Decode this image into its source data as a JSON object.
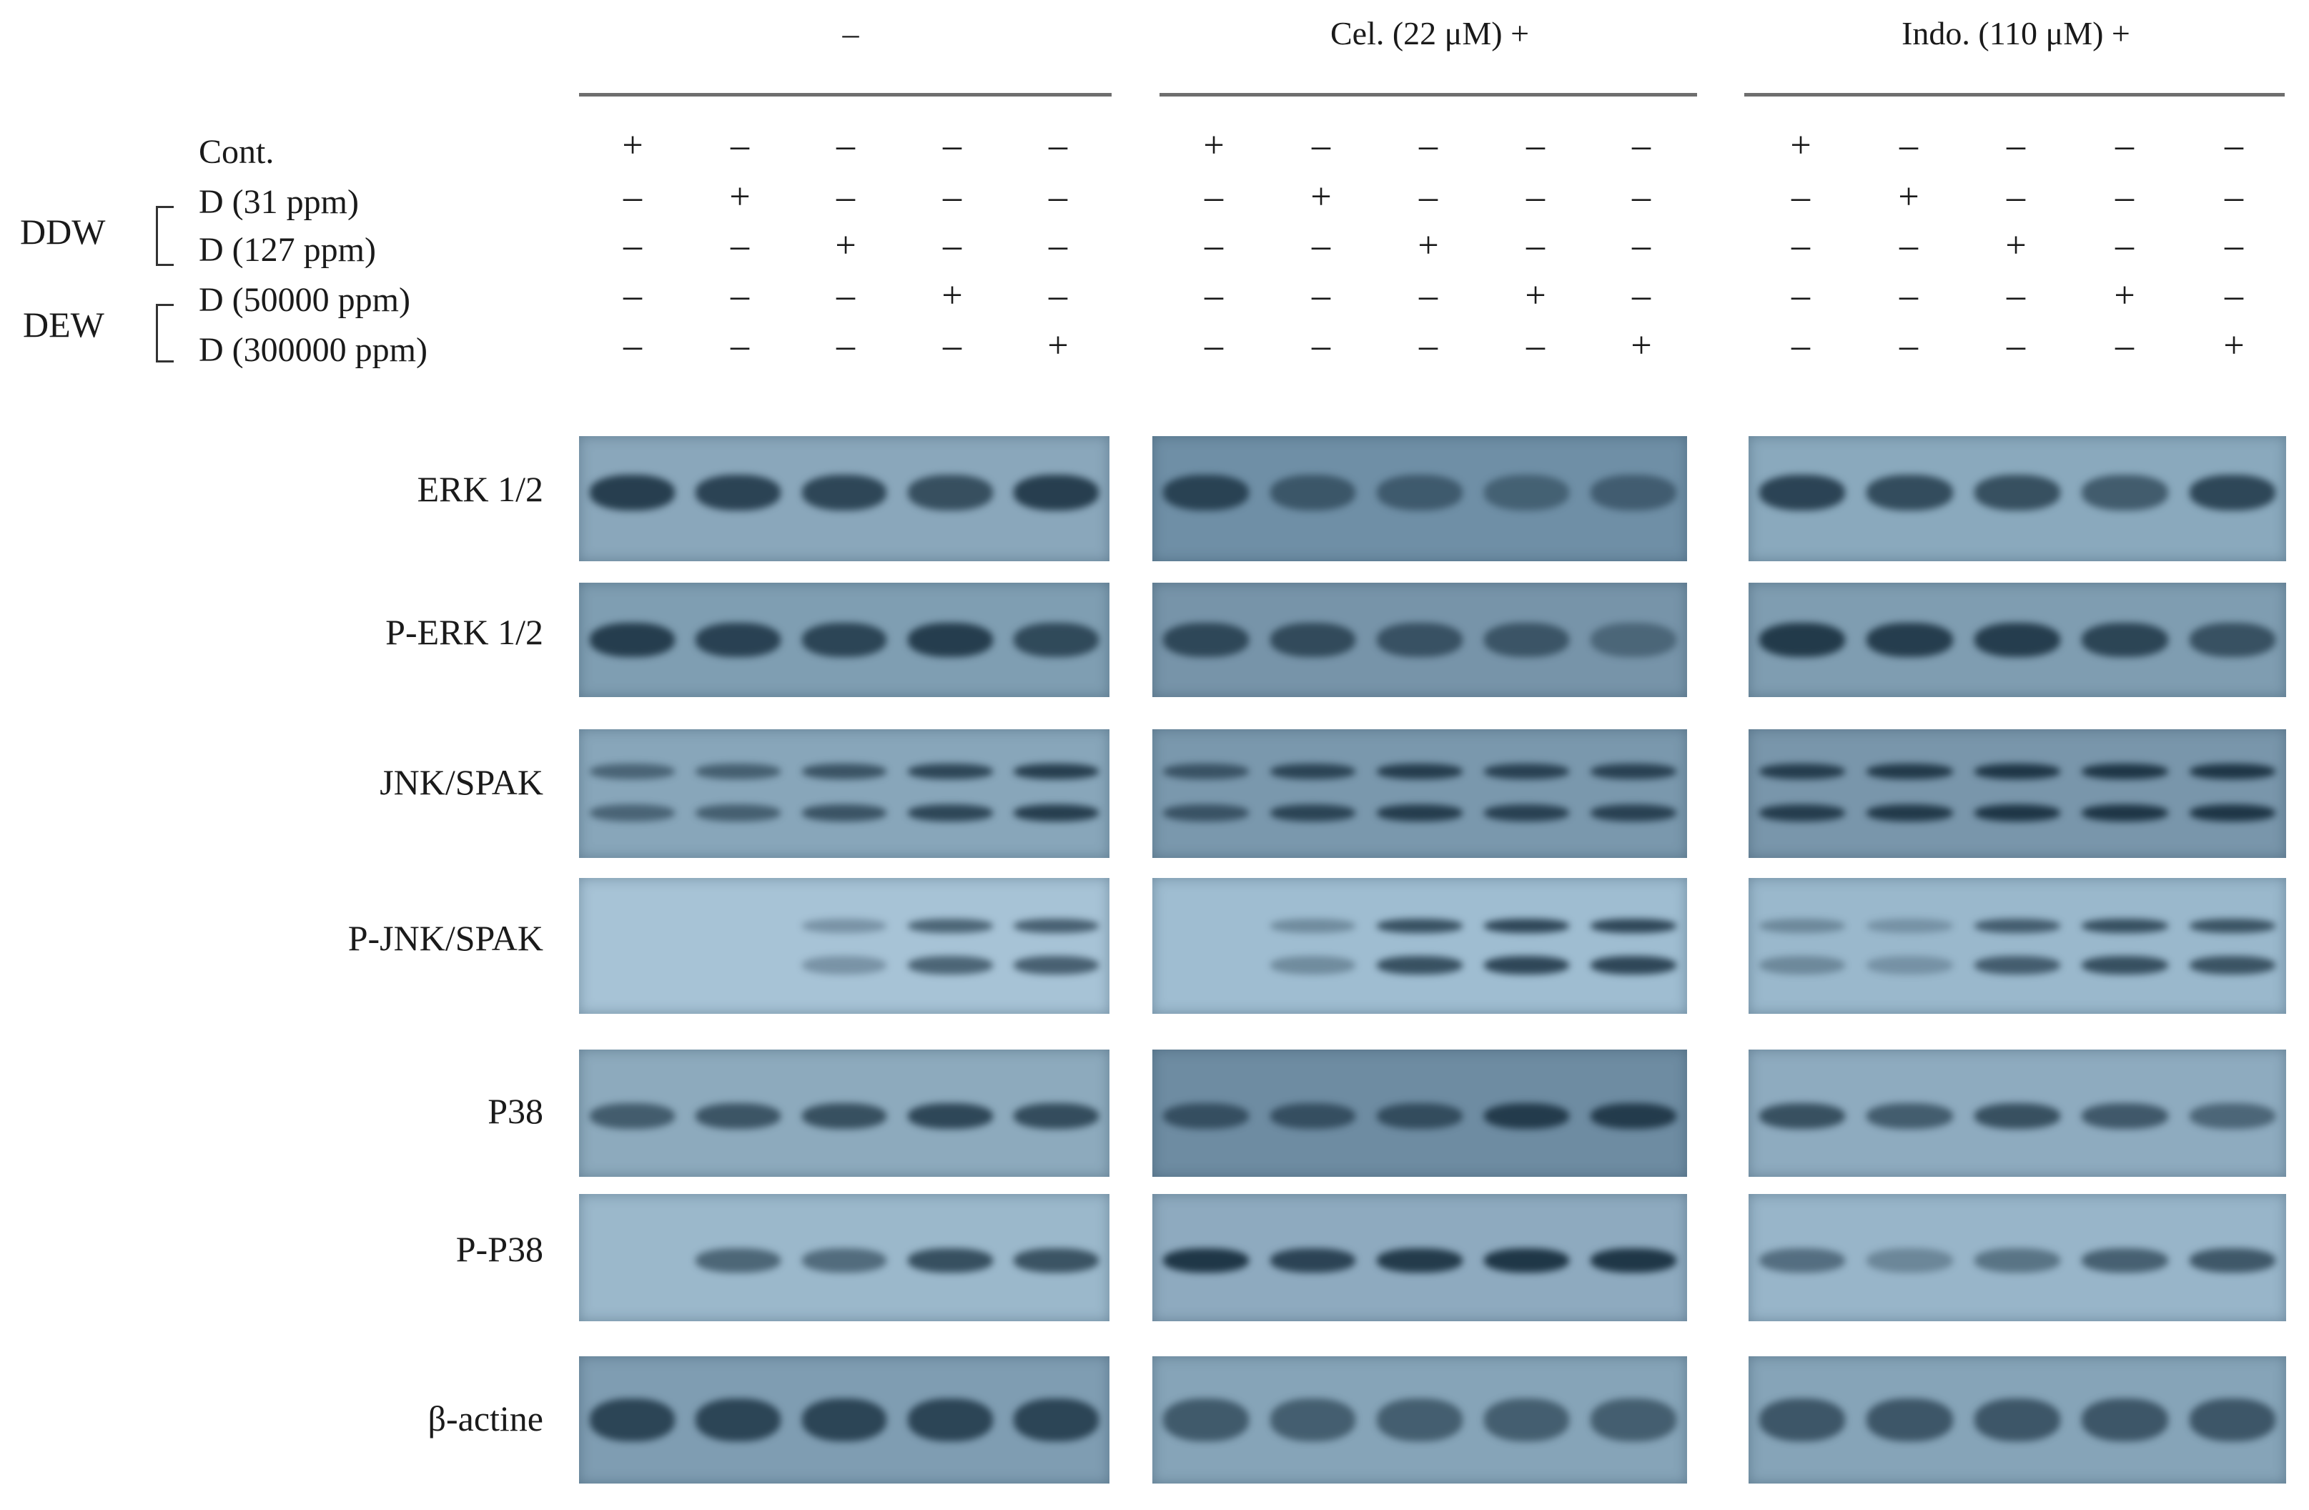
{
  "groups": [
    {
      "label": "–"
    },
    {
      "label": "Cel. (22 μM) +"
    },
    {
      "label": "Indo. (110 μM) +"
    }
  ],
  "condition_rows": [
    {
      "label": "Cont.",
      "signs": [
        "+",
        "–",
        "–",
        "–",
        "–"
      ]
    },
    {
      "label": "D (31 ppm)",
      "signs": [
        "–",
        "+",
        "–",
        "–",
        "–"
      ]
    },
    {
      "label": "D (127 ppm)",
      "signs": [
        "–",
        "–",
        "+",
        "–",
        "–"
      ]
    },
    {
      "label": "D (50000 ppm)",
      "signs": [
        "–",
        "–",
        "–",
        "+",
        "–"
      ]
    },
    {
      "label": "D (300000 ppm)",
      "signs": [
        "–",
        "–",
        "–",
        "–",
        "+"
      ]
    }
  ],
  "water_groups": [
    {
      "label": "DDW"
    },
    {
      "label": "DEW"
    }
  ],
  "blots": [
    {
      "label": "ERK 1/2"
    },
    {
      "label": "P-ERK 1/2"
    },
    {
      "label": "JNK/SPAK"
    },
    {
      "label": "P-JNK/SPAK"
    },
    {
      "label": "P38"
    },
    {
      "label": "P-P38"
    },
    {
      "label": "β-actine"
    }
  ],
  "colors": {
    "membrane": "#6f8fa6",
    "membrane_light": "#a7c3d6",
    "band_dark": "#1f3646",
    "band_mid": "#3b586d"
  }
}
